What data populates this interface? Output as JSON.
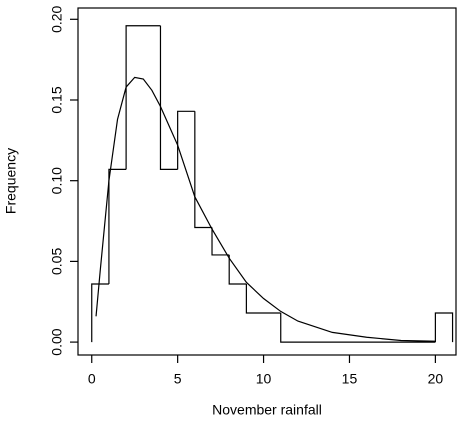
{
  "chart_data": {
    "type": "histogram",
    "xlabel": "November rainfall",
    "ylabel": "Frequency",
    "bins": [
      0,
      1,
      2,
      4,
      5,
      6,
      7,
      8,
      9,
      11,
      20,
      21
    ],
    "values": [
      0.036,
      0.107,
      0.196,
      0.107,
      0.143,
      0.071,
      0.054,
      0.036,
      0.018,
      0,
      0.018
    ],
    "curve": {
      "x": [
        0.25,
        0.5,
        1,
        1.5,
        2,
        2.5,
        3,
        3.5,
        4,
        5,
        6,
        7,
        8,
        9,
        10,
        11,
        12,
        14,
        16,
        18,
        20
      ],
      "y": [
        0.016,
        0.045,
        0.1,
        0.138,
        0.158,
        0.164,
        0.163,
        0.156,
        0.146,
        0.122,
        0.09,
        0.07,
        0.052,
        0.037,
        0.027,
        0.019,
        0.013,
        0.006,
        0.003,
        0.001,
        0.0005
      ]
    },
    "color": "#000000",
    "xlim": [
      -0.8,
      21.2
    ],
    "ylim": [
      -0.008,
      0.207
    ],
    "xticks": [
      0,
      5,
      10,
      15,
      20
    ],
    "yticks": [
      {
        "value": 0,
        "label": "0.00"
      },
      0.05,
      {
        "value": 0.1,
        "label": "0.10"
      },
      0.15,
      {
        "value": 0.2,
        "label": "0.20"
      }
    ]
  }
}
